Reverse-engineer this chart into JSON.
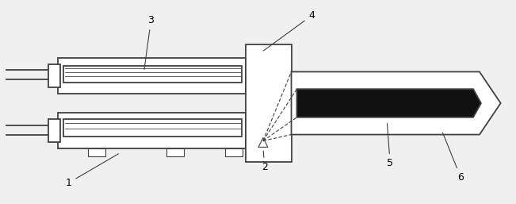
{
  "bg_color": "#f0f0f0",
  "line_color": "#404040",
  "dark_color": "#111111",
  "label_color": "#000000",
  "figsize": [
    6.51,
    2.57
  ],
  "dpi": 100
}
